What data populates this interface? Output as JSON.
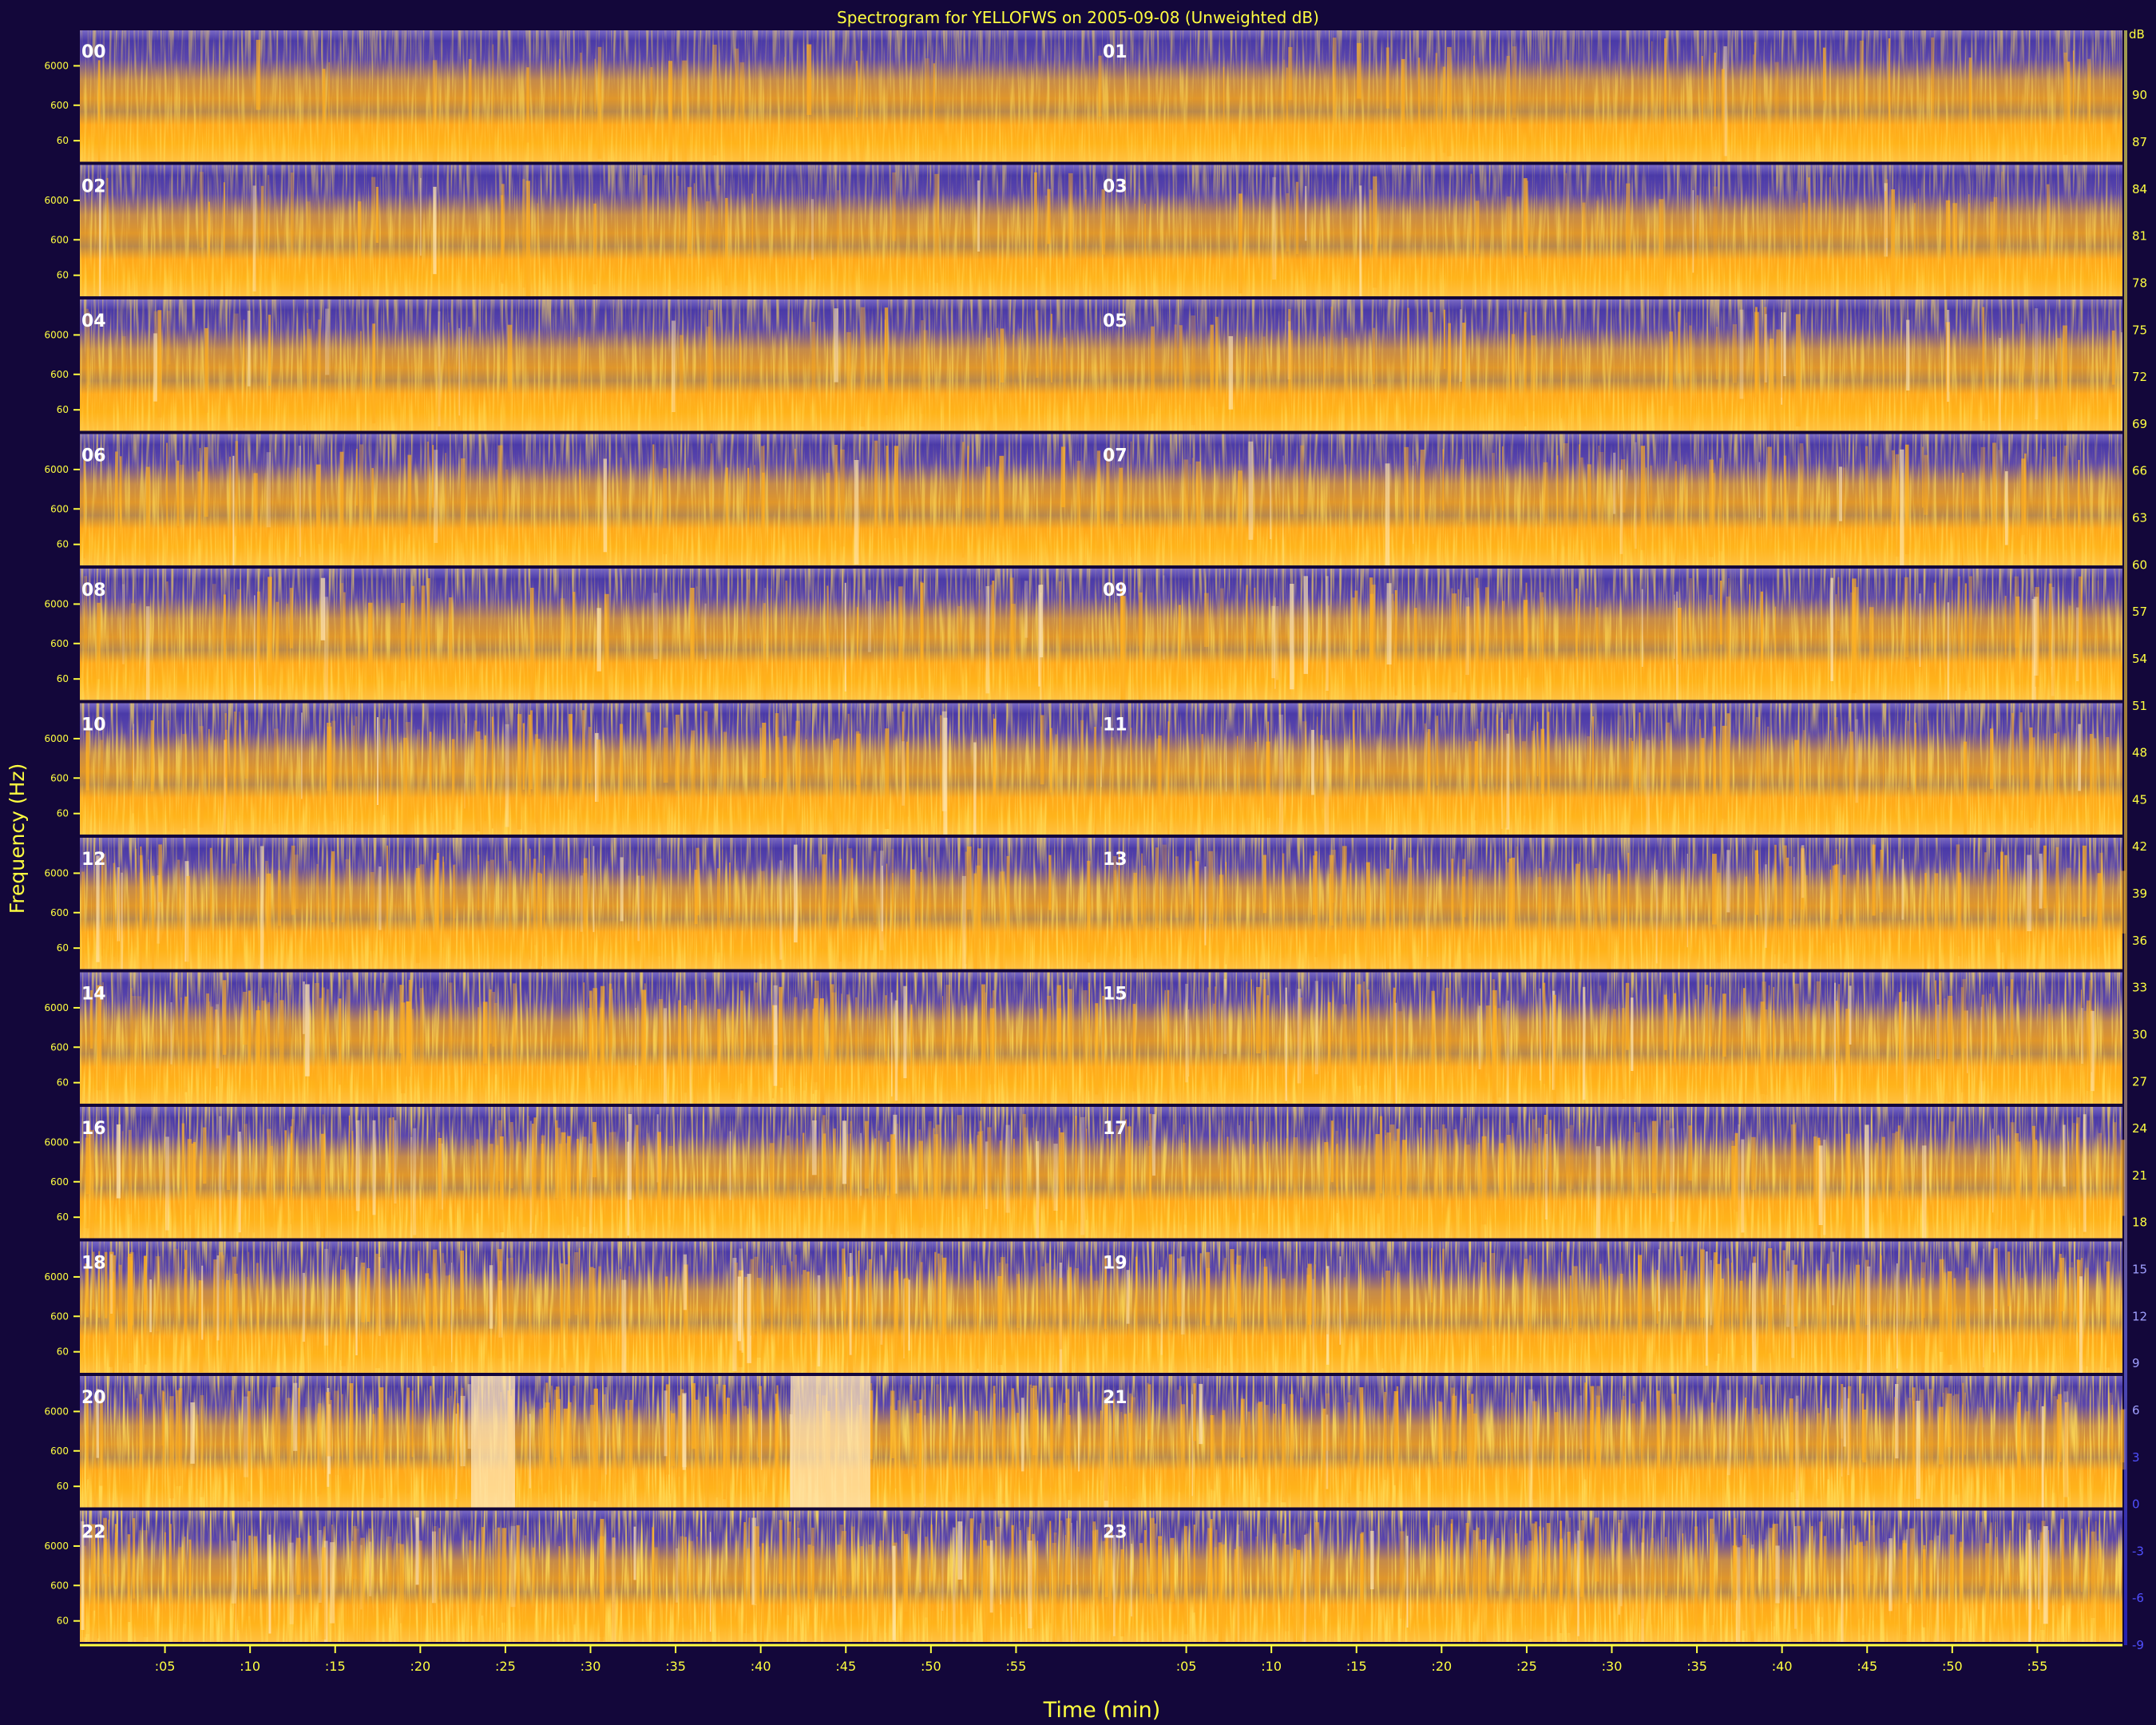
{
  "chart_data": {
    "type": "heatmap",
    "title": "Spectrogram for YELLOFWS on 2005-09-08 (Unweighted dB)",
    "xlabel": "Time (min)",
    "ylabel": "Frequency (Hz)",
    "grid": false,
    "rows": 12,
    "columns": 2,
    "hour_labels": [
      "00",
      "01",
      "02",
      "03",
      "04",
      "05",
      "06",
      "07",
      "08",
      "09",
      "10",
      "11",
      "12",
      "13",
      "14",
      "15",
      "16",
      "17",
      "18",
      "19",
      "20",
      "21",
      "22",
      "23"
    ],
    "freq_tick_labels": [
      "6000",
      "600",
      "60"
    ],
    "time_tick_labels": [
      ":05",
      ":10",
      ":15",
      ":20",
      ":25",
      ":30",
      ":35",
      ":40",
      ":45",
      ":50",
      ":55"
    ],
    "time_ticks_min": [
      5,
      10,
      15,
      20,
      25,
      30,
      35,
      40,
      45,
      50,
      55
    ],
    "x_range_min": [
      0,
      60
    ],
    "colorbar": {
      "label": "dB",
      "ticks": [
        90,
        87,
        84,
        81,
        78,
        75,
        72,
        69,
        66,
        63,
        60,
        57,
        54,
        51,
        48,
        45,
        42,
        39,
        36,
        33,
        30,
        27,
        24,
        21,
        18,
        15,
        12,
        9,
        6,
        3,
        0,
        -3,
        -6,
        -9
      ],
      "range": [
        -9,
        92
      ]
    },
    "colors": {
      "background": "#13073a",
      "low": "#4a3aa8",
      "mid": "#ffa500",
      "high": "#fff3d6",
      "axis_text": "#ffff40",
      "hour_text": "#ffffff"
    }
  }
}
